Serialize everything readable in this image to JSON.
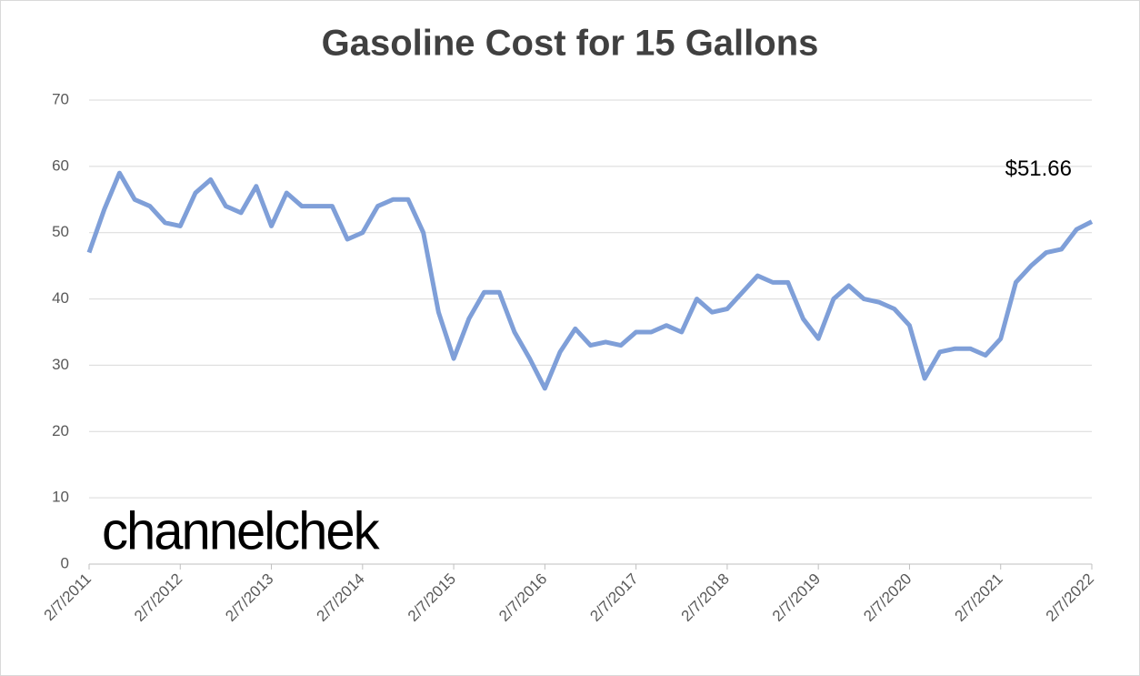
{
  "chart_data": {
    "type": "line",
    "title": "Gasoline Cost for 15 Gallons",
    "logo": "channelchek",
    "categories": [
      "2/7/2011",
      null,
      null,
      null,
      null,
      null,
      "2/7/2012",
      null,
      null,
      null,
      null,
      null,
      "2/7/2013",
      null,
      null,
      null,
      null,
      null,
      "2/7/2014",
      null,
      null,
      null,
      null,
      null,
      "2/7/2015",
      null,
      null,
      null,
      null,
      null,
      "2/7/2016",
      null,
      null,
      null,
      null,
      null,
      "2/7/2017",
      null,
      null,
      null,
      null,
      null,
      "2/7/2018",
      null,
      null,
      null,
      null,
      null,
      "2/7/2019",
      null,
      null,
      null,
      null,
      null,
      "2/7/2020",
      null,
      null,
      null,
      null,
      null,
      "2/7/2021",
      null,
      null,
      null,
      null,
      null,
      "2/7/2022"
    ],
    "series": [
      {
        "name": "Gasoline Cost",
        "color": "#7f9fd8",
        "values": [
          47,
          53.5,
          59,
          55,
          54,
          51.5,
          51,
          56,
          58,
          54,
          53,
          57,
          51,
          56,
          54,
          54,
          54,
          49,
          50,
          54,
          55,
          55,
          50,
          38,
          31,
          37,
          41,
          41,
          35,
          31,
          26.5,
          32,
          35.5,
          33,
          33.5,
          33,
          35,
          35,
          36,
          35,
          40,
          38,
          38.5,
          41,
          43.5,
          42.5,
          42.5,
          37,
          34,
          40,
          42,
          40,
          39.5,
          38.5,
          36,
          28,
          32,
          32.5,
          32.5,
          31.5,
          34,
          42.5,
          45,
          47,
          47.5,
          50.5,
          51.66
        ]
      }
    ],
    "value_labels": [
      null,
      null,
      null,
      null,
      null,
      null,
      null,
      null,
      null,
      null,
      null,
      null,
      null,
      null,
      null,
      null,
      null,
      null,
      null,
      null,
      null,
      null,
      null,
      null,
      null,
      null,
      null,
      null,
      null,
      null,
      null,
      null,
      null,
      null,
      null,
      null,
      null,
      null,
      null,
      null,
      null,
      null,
      null,
      null,
      null,
      null,
      null,
      null,
      null,
      null,
      null,
      null,
      null,
      null,
      null,
      null,
      null,
      null,
      null,
      null,
      null,
      null,
      null,
      null,
      null,
      null,
      "$51.66"
    ],
    "ylim": [
      0,
      70
    ],
    "yticks": [
      0,
      10,
      20,
      30,
      40,
      50,
      60,
      70
    ],
    "grid": true
  }
}
